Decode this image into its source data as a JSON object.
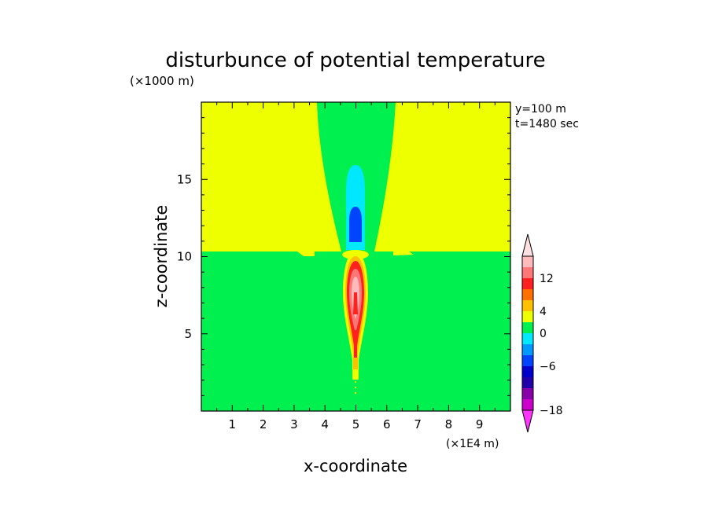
{
  "chart_data": {
    "type": "heatmap",
    "title": "disturbunce of potential temperature",
    "xlabel": "x-coordinate",
    "ylabel": "z-coordinate",
    "x_unit": "(×1E4 m)",
    "y_unit": "(×1000 m)",
    "annotations": [
      "y=100 m",
      "t=1480 sec"
    ],
    "xlim": [
      0,
      10
    ],
    "ylim": [
      0,
      20
    ],
    "x_ticks": [
      1,
      2,
      3,
      4,
      5,
      6,
      7,
      8,
      9
    ],
    "y_ticks": [
      5,
      10,
      15
    ],
    "background_value_range": [
      0,
      2
    ],
    "features": [
      {
        "name": "upper-layer",
        "z_range": [
          10.2,
          20
        ],
        "level_color": "#eeff00"
      },
      {
        "name": "lower-layer",
        "z_range": [
          0,
          10.2
        ],
        "level_color": "#00f050"
      },
      {
        "name": "cold-anomaly-light",
        "x_center": 5.0,
        "z_range": [
          10.5,
          15.8
        ],
        "level_color": "#00e8ff"
      },
      {
        "name": "cold-anomaly-core",
        "x_center": 5.0,
        "z_range": [
          11.0,
          13.1
        ],
        "level_color": "#0044ff"
      },
      {
        "name": "warm-plume",
        "x_center": 5.0,
        "z_range": [
          0.8,
          10.2
        ],
        "level_color": "#ff2020"
      }
    ],
    "colorbar": {
      "levels": [
        -20,
        -18,
        -16,
        -12,
        -8,
        -6,
        -4,
        -2,
        0,
        2,
        4,
        6,
        8,
        12,
        16,
        20
      ],
      "tick_labels": [
        "12",
        "4",
        "0",
        "-6",
        "-18"
      ],
      "tick_values": [
        12,
        4,
        0,
        -6,
        -18
      ],
      "colors": [
        "#ff33ff",
        "#cc00cc",
        "#8800aa",
        "#2200aa",
        "#0000cc",
        "#0044ff",
        "#0099ff",
        "#00e8ff",
        "#00f050",
        "#eeff00",
        "#ffc000",
        "#ff7000",
        "#ff2020",
        "#ff7777",
        "#ffbbbb",
        "#ffe0e0"
      ]
    }
  }
}
